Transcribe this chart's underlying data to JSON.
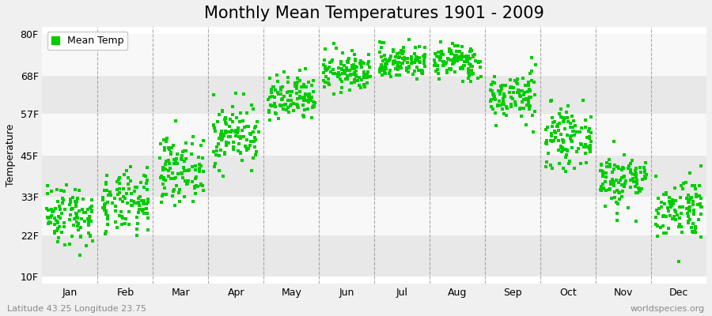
{
  "title": "Monthly Mean Temperatures 1901 - 2009",
  "ylabel": "Temperature",
  "yticks": [
    10,
    22,
    33,
    45,
    57,
    68,
    80
  ],
  "ytick_labels": [
    "10F",
    "22F",
    "33F",
    "45F",
    "57F",
    "68F",
    "80F"
  ],
  "ylim": [
    8,
    82
  ],
  "months": [
    "Jan",
    "Feb",
    "Mar",
    "Apr",
    "May",
    "Jun",
    "Jul",
    "Aug",
    "Sep",
    "Oct",
    "Nov",
    "Dec"
  ],
  "n_years": 109,
  "seed": 42,
  "mean_temps_f": [
    28,
    31,
    41,
    51,
    61,
    69,
    72,
    72,
    62,
    50,
    38,
    30
  ],
  "std_temps_f": [
    4.5,
    4.5,
    4.5,
    4.5,
    3.5,
    2.8,
    2.5,
    2.5,
    3.5,
    4.0,
    4.0,
    4.5
  ],
  "marker_color": "#00cc00",
  "marker_size": 2.5,
  "bg_color": "#f0f0f0",
  "plot_bg_color": "#ffffff",
  "band_colors": [
    "#e8e8e8",
    "#f8f8f8"
  ],
  "grid_color": "#888888",
  "legend_label": "Mean Temp",
  "subtitle_left": "Latitude 43.25 Longitude 23.75",
  "subtitle_right": "worldspecies.org",
  "title_fontsize": 15,
  "axis_fontsize": 9,
  "label_fontsize": 9
}
